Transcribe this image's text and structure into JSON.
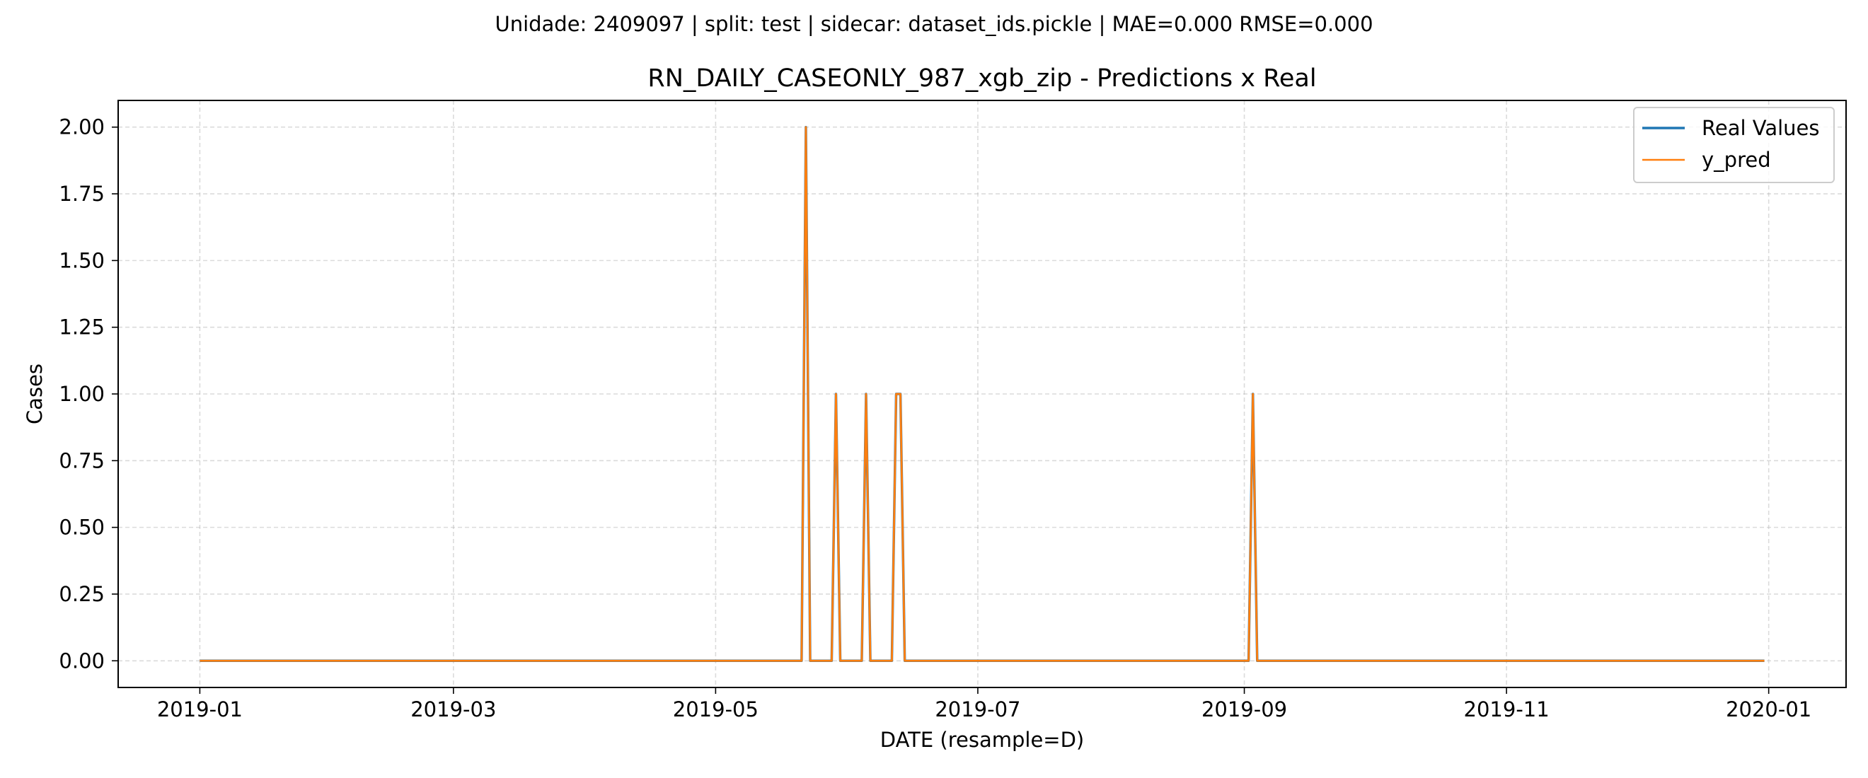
{
  "chart_data": {
    "type": "line",
    "suptitle": "Unidade: 2409097 | split: test | sidecar: dataset_ids.pickle | MAE=0.000  RMSE=0.000",
    "title": "RN_DAILY_CASEONLY_987_xgb_zip - Predictions x Real",
    "xlabel": "DATE (resample=D)",
    "ylabel": "Cases",
    "xlim": [
      "2018-12-13",
      "2020-01-19"
    ],
    "ylim": [
      -0.1,
      2.1
    ],
    "xticks": [
      {
        "date": "2019-01-01",
        "label": "2019-01"
      },
      {
        "date": "2019-03-01",
        "label": "2019-03"
      },
      {
        "date": "2019-05-01",
        "label": "2019-05"
      },
      {
        "date": "2019-07-01",
        "label": "2019-07"
      },
      {
        "date": "2019-09-01",
        "label": "2019-09"
      },
      {
        "date": "2019-11-01",
        "label": "2019-11"
      },
      {
        "date": "2020-01-01",
        "label": "2020-01"
      }
    ],
    "yticks": [
      {
        "value": 0.0,
        "label": "0.00"
      },
      {
        "value": 0.25,
        "label": "0.25"
      },
      {
        "value": 0.5,
        "label": "0.50"
      },
      {
        "value": 0.75,
        "label": "0.75"
      },
      {
        "value": 1.0,
        "label": "1.00"
      },
      {
        "value": 1.25,
        "label": "1.25"
      },
      {
        "value": 1.5,
        "label": "1.50"
      },
      {
        "value": 1.75,
        "label": "1.75"
      },
      {
        "value": 2.0,
        "label": "2.00"
      }
    ],
    "grid": true,
    "legend_position": "top-right",
    "series": [
      {
        "name": "Real Values",
        "color": "#1f77b4",
        "points": [
          [
            "2019-01-01",
            0
          ],
          [
            "2019-05-21",
            0
          ],
          [
            "2019-05-22",
            2
          ],
          [
            "2019-05-23",
            0
          ],
          [
            "2019-05-28",
            0
          ],
          [
            "2019-05-29",
            1
          ],
          [
            "2019-05-30",
            0
          ],
          [
            "2019-06-04",
            0
          ],
          [
            "2019-06-05",
            1
          ],
          [
            "2019-06-06",
            0
          ],
          [
            "2019-06-11",
            0
          ],
          [
            "2019-06-12",
            1
          ],
          [
            "2019-06-13",
            1
          ],
          [
            "2019-06-14",
            0
          ],
          [
            "2019-09-02",
            0
          ],
          [
            "2019-09-03",
            1
          ],
          [
            "2019-09-04",
            0
          ],
          [
            "2019-12-31",
            0
          ]
        ]
      },
      {
        "name": "y_pred",
        "color": "#ff7f0e",
        "points": [
          [
            "2019-01-01",
            0
          ],
          [
            "2019-05-21",
            0
          ],
          [
            "2019-05-22",
            2
          ],
          [
            "2019-05-23",
            0
          ],
          [
            "2019-05-28",
            0
          ],
          [
            "2019-05-29",
            1
          ],
          [
            "2019-05-30",
            0
          ],
          [
            "2019-06-04",
            0
          ],
          [
            "2019-06-05",
            1
          ],
          [
            "2019-06-06",
            0
          ],
          [
            "2019-06-11",
            0
          ],
          [
            "2019-06-12",
            1
          ],
          [
            "2019-06-13",
            1
          ],
          [
            "2019-06-14",
            0
          ],
          [
            "2019-09-02",
            0
          ],
          [
            "2019-09-03",
            1
          ],
          [
            "2019-09-04",
            0
          ],
          [
            "2019-12-31",
            0
          ]
        ]
      }
    ]
  }
}
